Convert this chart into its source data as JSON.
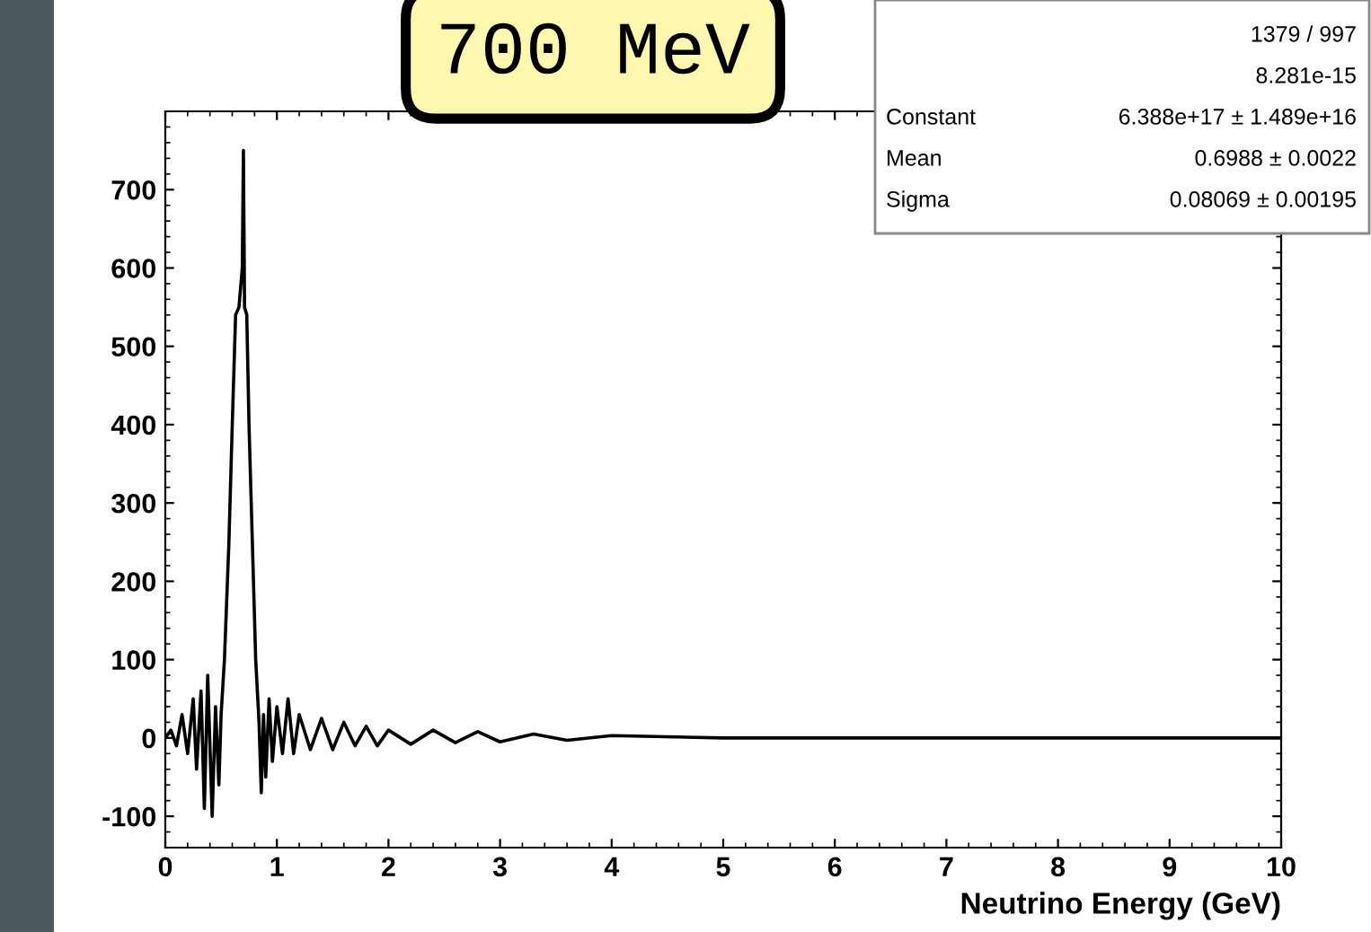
{
  "chart_data": {
    "type": "line",
    "title": "700 MeV",
    "xlabel": "Neutrino Energy (GeV)",
    "x": [
      0,
      0.05,
      0.1,
      0.15,
      0.2,
      0.25,
      0.28,
      0.32,
      0.35,
      0.38,
      0.42,
      0.45,
      0.48,
      0.5,
      0.53,
      0.57,
      0.6,
      0.63,
      0.66,
      0.69,
      0.7,
      0.71,
      0.73,
      0.75,
      0.78,
      0.81,
      0.84,
      0.86,
      0.88,
      0.9,
      0.93,
      0.96,
      1.0,
      1.05,
      1.1,
      1.15,
      1.2,
      1.3,
      1.4,
      1.5,
      1.6,
      1.7,
      1.8,
      1.9,
      2.0,
      2.2,
      2.4,
      2.6,
      2.8,
      3.0,
      3.3,
      3.6,
      4.0,
      5,
      6,
      7,
      8,
      9,
      10
    ],
    "series": [
      {
        "color": "#000000",
        "values": [
          0,
          10,
          -10,
          30,
          -20,
          50,
          -40,
          60,
          -90,
          80,
          -100,
          40,
          -60,
          30,
          100,
          250,
          400,
          540,
          550,
          600,
          750,
          550,
          540,
          400,
          250,
          100,
          20,
          -70,
          30,
          -50,
          50,
          -30,
          40,
          -20,
          50,
          -20,
          30,
          -15,
          25,
          -15,
          20,
          -10,
          15,
          -10,
          10,
          -8,
          10,
          -6,
          8,
          -5,
          5,
          -3,
          3,
          0,
          0,
          0,
          0,
          0,
          0
        ]
      }
    ],
    "xlim": [
      0,
      10
    ],
    "xticks": [
      0,
      1,
      2,
      3,
      4,
      5,
      6,
      7,
      8,
      9,
      10
    ],
    "ylim": [
      -140,
      800
    ],
    "yticks": [
      -100,
      0,
      100,
      200,
      300,
      400,
      500,
      600,
      700
    ],
    "annotations": [
      "1379 / 997",
      "8.281e-15",
      "Constant 6.388e+17 ± 1.489e+16",
      "Mean 0.6988 ± 0.0022",
      "Sigma 0.08069 ± 0.00195"
    ],
    "grid": false,
    "marker": "none",
    "line_style": "solid"
  }
}
